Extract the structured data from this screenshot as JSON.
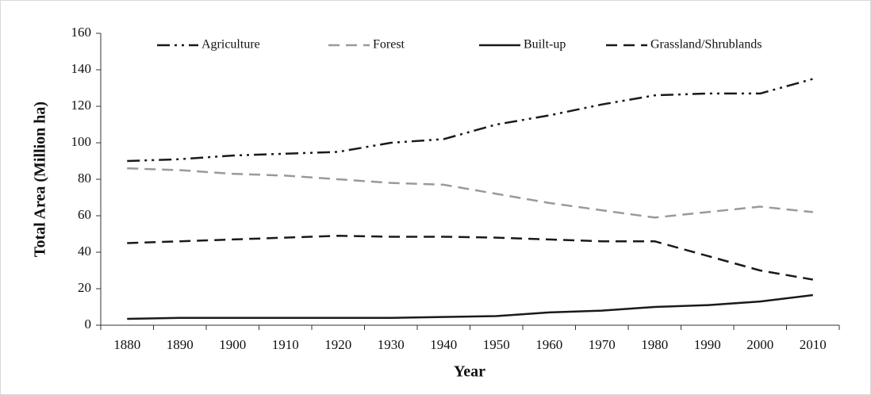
{
  "chart_data": {
    "type": "line",
    "x_label": "Year",
    "y_label": "Total Area (Million  ha)",
    "categories": [
      "1880",
      "1890",
      "1900",
      "1910",
      "1920",
      "1930",
      "1940",
      "1950",
      "1960",
      "1970",
      "1980",
      "1990",
      "2000",
      "2010"
    ],
    "series": [
      {
        "name": "Agriculture",
        "color": "#1a1a1a",
        "dash": "dash-dot-dot",
        "values": [
          90,
          91,
          93,
          94,
          95,
          100,
          102,
          110,
          115,
          121,
          126,
          127,
          127,
          135
        ]
      },
      {
        "name": "Forest",
        "color": "#9a9a9a",
        "dash": "dash",
        "values": [
          86,
          85,
          83,
          82,
          80,
          78,
          77,
          72,
          67,
          63,
          59,
          62,
          65,
          62
        ]
      },
      {
        "name": "Built-up",
        "color": "#1a1a1a",
        "dash": "solid",
        "values": [
          3.5,
          4,
          4,
          4,
          4,
          4,
          4.5,
          5,
          7,
          8,
          10,
          11,
          13,
          16.5
        ]
      },
      {
        "name": "Grassland/Shrublands",
        "color": "#1a1a1a",
        "dash": "dash",
        "values": [
          45,
          46,
          47,
          48,
          49,
          48.5,
          48.5,
          48,
          47,
          46,
          46,
          38,
          30,
          25
        ]
      }
    ],
    "ylim": [
      0,
      160
    ],
    "yticks": [
      0,
      20,
      40,
      60,
      80,
      100,
      120,
      140,
      160
    ],
    "legend": "top"
  }
}
